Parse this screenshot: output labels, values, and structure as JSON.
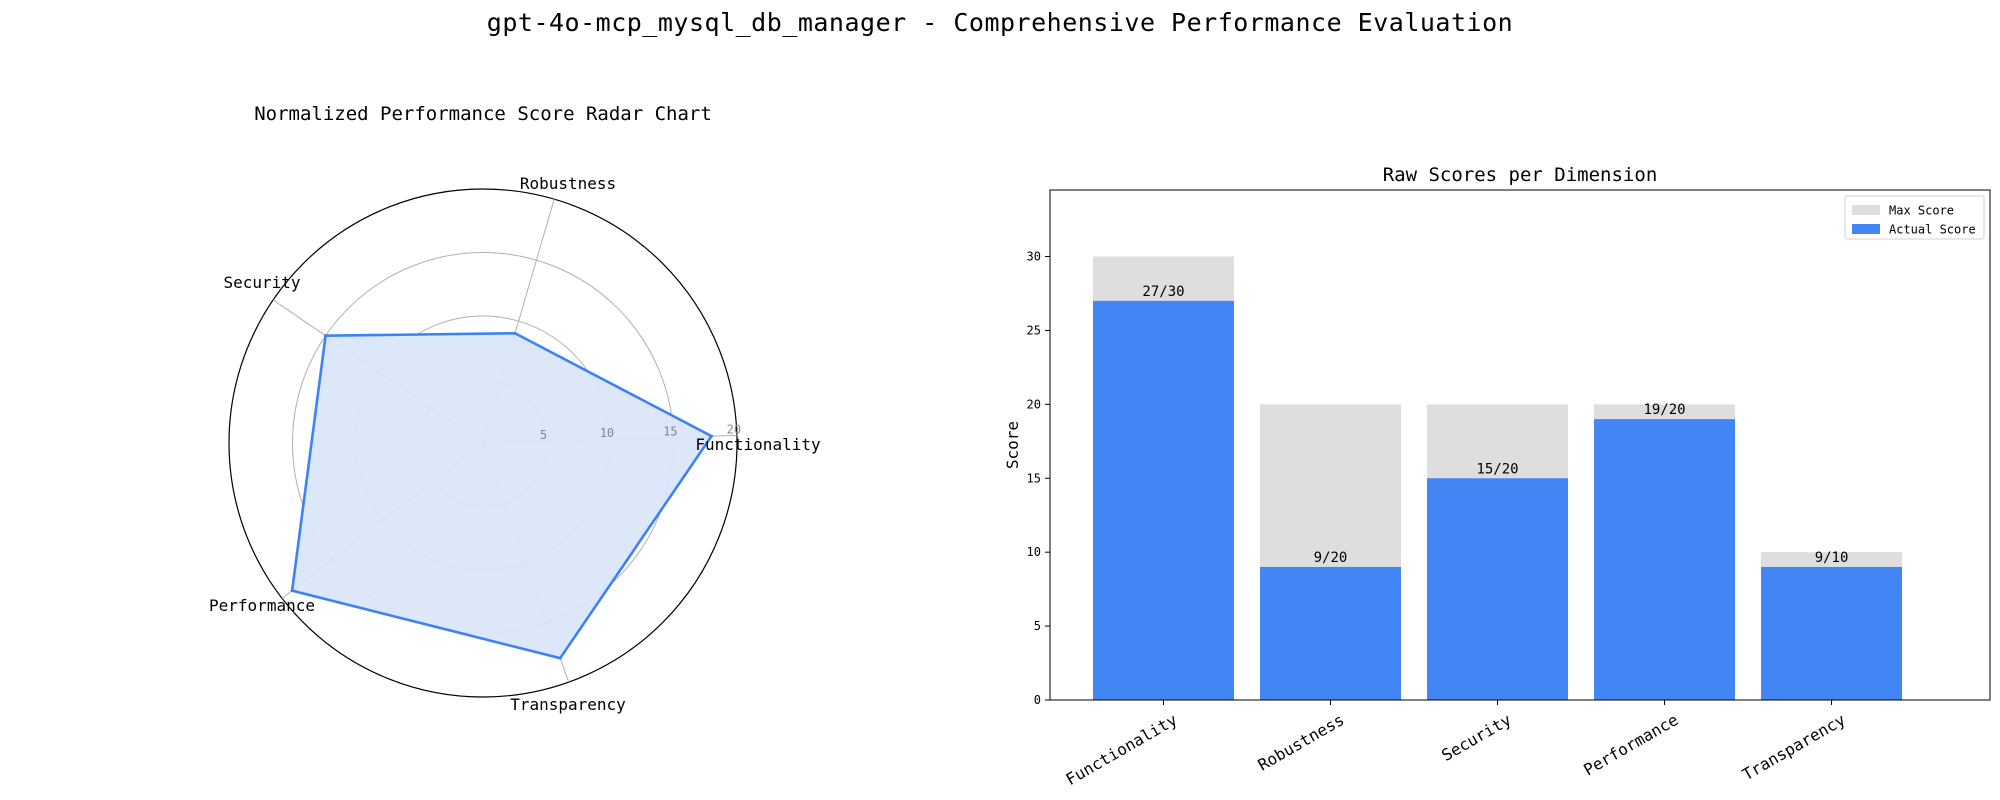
{
  "figure": {
    "title": "gpt-4o-mcp_mysql_db_manager - Comprehensive Performance Evaluation"
  },
  "chart_data": [
    {
      "type": "radar",
      "title": "Normalized Performance Score Radar Chart",
      "categories": [
        "Functionality",
        "Robustness",
        "Security",
        "Performance",
        "Transparency"
      ],
      "values": [
        18,
        9,
        15,
        19,
        18
      ],
      "rlim": [
        0,
        20
      ],
      "rticks": [
        5,
        10,
        15,
        20
      ],
      "grid": true,
      "colors": {
        "line": "#3b82f6",
        "fill": "#dbe6fa",
        "grid": "#b0b0b0"
      }
    },
    {
      "type": "bar",
      "title": "Raw Scores per Dimension",
      "categories": [
        "Functionality",
        "Robustness",
        "Security",
        "Performance",
        "Transparency"
      ],
      "series": [
        {
          "name": "Max Score",
          "values": [
            30,
            20,
            20,
            20,
            10
          ],
          "color": "#dedede"
        },
        {
          "name": "Actual Score",
          "values": [
            27,
            9,
            15,
            19,
            9
          ],
          "color": "#4285f4"
        }
      ],
      "bar_labels": [
        "27/30",
        "9/20",
        "15/20",
        "19/20",
        "9/10"
      ],
      "ylabel": "Score",
      "xlabel": "",
      "ylim": [
        0,
        34.5
      ],
      "yticks": [
        0,
        5,
        10,
        15,
        20,
        25,
        30
      ],
      "grid": false,
      "legend": "top-right"
    }
  ]
}
